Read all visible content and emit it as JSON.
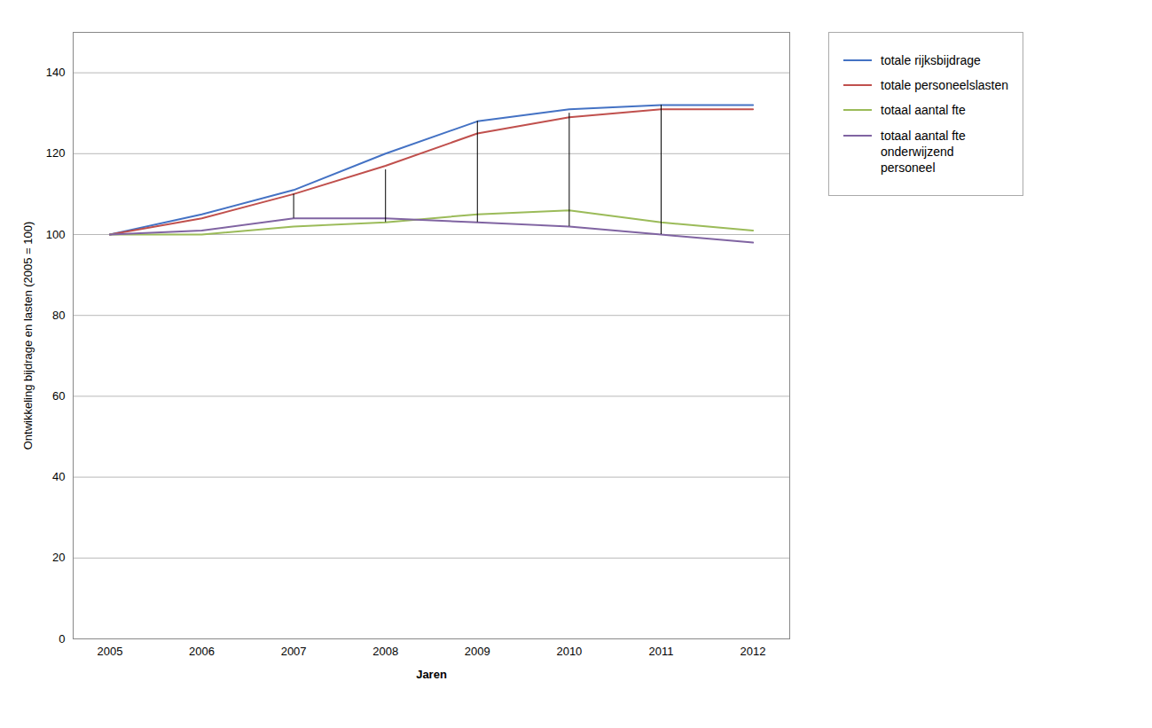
{
  "chart_data": {
    "type": "line",
    "x": [
      2005,
      2006,
      2007,
      2008,
      2009,
      2010,
      2011,
      2012
    ],
    "series": [
      {
        "name": "totale rijksbijdrage",
        "color": "#4472C4",
        "values": [
          100,
          105,
          111,
          120,
          128,
          131,
          132,
          132
        ]
      },
      {
        "name": "totale personeelslasten",
        "color": "#C0504D",
        "values": [
          100,
          104,
          110,
          117,
          125,
          129,
          131,
          131
        ]
      },
      {
        "name": "totaal aantal fte",
        "color": "#9BBB59",
        "values": [
          100,
          100,
          102,
          103,
          105,
          106,
          103,
          101
        ]
      },
      {
        "name": "totaal aantal fte\nonderwijzend\npersoneel",
        "color": "#8064A2",
        "values": [
          100,
          101,
          104,
          104,
          103,
          102,
          100,
          98
        ]
      }
    ],
    "vertical_lines": {
      "color": "#000000",
      "x": [
        2007,
        2008,
        2009,
        2010,
        2011
      ],
      "y_top": [
        110,
        116,
        128,
        130,
        132
      ],
      "y_bottom": [
        104,
        103,
        103,
        102,
        100
      ]
    },
    "xlabel": "Jaren",
    "ylabel": "Ontwikkeling bijdrage en lasten (2005 = 100)",
    "xlim": [
      2004.6,
      2012.4
    ],
    "xticks": [
      2005,
      2006,
      2007,
      2008,
      2009,
      2010,
      2011,
      2012
    ],
    "ylim": [
      0,
      150
    ],
    "yticks": [
      0,
      20,
      40,
      60,
      80,
      100,
      120,
      140
    ],
    "grid": "y",
    "legend": "right"
  }
}
